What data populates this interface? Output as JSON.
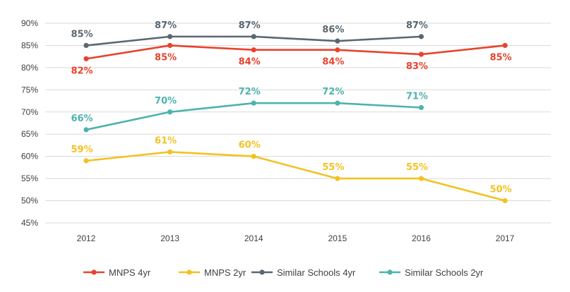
{
  "chart_data": {
    "type": "line",
    "title": "",
    "xlabel": "",
    "ylabel": "",
    "categories": [
      "2012",
      "2013",
      "2014",
      "2015",
      "2016",
      "2017"
    ],
    "ylim": [
      45,
      90
    ],
    "yticks": [
      45,
      50,
      55,
      60,
      65,
      70,
      75,
      80,
      85,
      90
    ],
    "ytick_labels": [
      "45%",
      "50%",
      "55%",
      "60%",
      "65%",
      "70%",
      "75%",
      "80%",
      "85%",
      "90%"
    ],
    "grid": true,
    "legend_position": "bottom",
    "series": [
      {
        "name": "MNPS 4yr",
        "color": "#e8432d",
        "values": [
          82,
          85,
          84,
          84,
          83,
          85
        ],
        "labels": [
          "82%",
          "85%",
          "84%",
          "84%",
          "83%",
          "85%"
        ],
        "label_pos": [
          "below",
          "below",
          "below",
          "below",
          "below",
          "below"
        ]
      },
      {
        "name": "MNPS 2yr",
        "color": "#f3c221",
        "values": [
          59,
          61,
          60,
          55,
          55,
          50
        ],
        "labels": [
          "59%",
          "61%",
          "60%",
          "55%",
          "55%",
          "50%"
        ],
        "label_pos": [
          "above",
          "above",
          "above",
          "above",
          "above",
          "above"
        ]
      },
      {
        "name": "Similar Schools 4yr",
        "color": "#5b6770",
        "values": [
          85,
          87,
          87,
          86,
          87,
          null
        ],
        "labels": [
          "85%",
          "87%",
          "87%",
          "86%",
          "87%",
          null
        ],
        "label_pos": [
          "above",
          "above",
          "above",
          "above",
          "above",
          "above"
        ]
      },
      {
        "name": "Similar Schools 2yr",
        "color": "#4cb3ad",
        "values": [
          66,
          70,
          72,
          72,
          71,
          null
        ],
        "labels": [
          "66%",
          "70%",
          "72%",
          "72%",
          "71%",
          null
        ],
        "label_pos": [
          "above",
          "above",
          "above",
          "above",
          "above",
          "above"
        ]
      }
    ]
  }
}
